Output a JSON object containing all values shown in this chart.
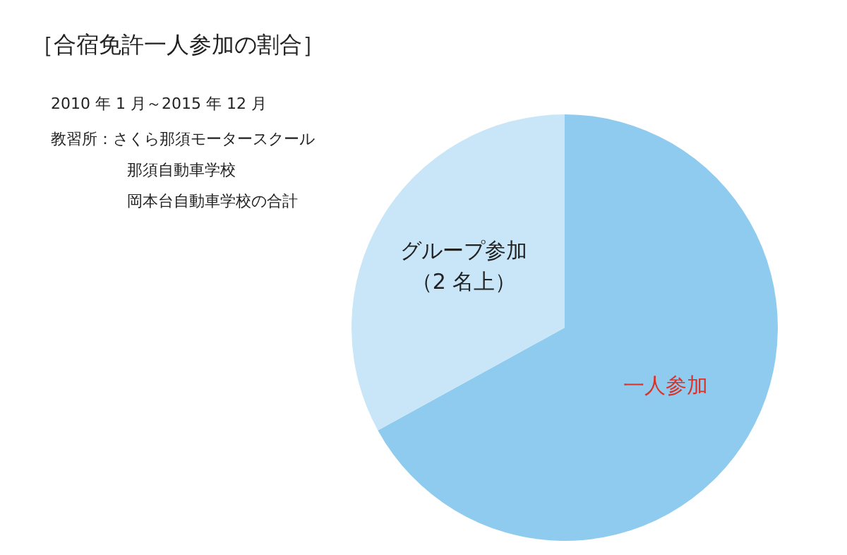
{
  "chart_data": {
    "type": "pie",
    "title": "［合宿免許一人参加の割合］",
    "subtitle": "2010 年 1 月～2015 年 12 月",
    "annotations": [
      "教習所：さくら那須モータースクール",
      "那須自動車学校",
      "岡本台自動車学校の合計"
    ],
    "categories": [
      "一人参加",
      "グループ参加（2 名上）"
    ],
    "values": [
      67,
      33
    ],
    "colors": [
      "#8ecbee",
      "#c8e6f7"
    ]
  }
}
